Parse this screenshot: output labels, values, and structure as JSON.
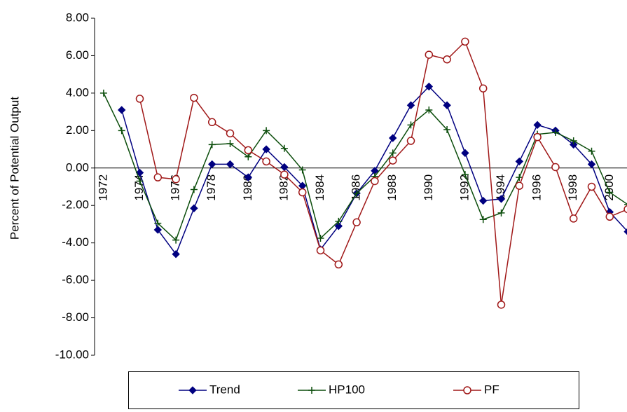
{
  "chart_data": {
    "type": "line",
    "y_label": "Percent of Potential Output",
    "categories": [
      "1972",
      null,
      "1974",
      null,
      "1976",
      null,
      "1978",
      null,
      "1980",
      null,
      "1982",
      null,
      "1984",
      null,
      "1986",
      null,
      "1988",
      null,
      "1990",
      null,
      "1992",
      null,
      "1994",
      null,
      "1996",
      null,
      "1998",
      null,
      "2000",
      null
    ],
    "series": [
      {
        "name": "Trend",
        "color": "#000080",
        "marker": "diamond",
        "values": [
          null,
          3.1,
          -0.25,
          -3.3,
          -4.6,
          -2.15,
          0.2,
          0.2,
          -0.5,
          1.0,
          0.05,
          -0.95,
          -4.35,
          -3.1,
          -1.35,
          -0.15,
          1.6,
          3.35,
          4.35,
          3.35,
          0.8,
          -1.75,
          -1.65,
          0.35,
          2.3,
          2.0,
          1.25,
          0.2,
          -2.35,
          -3.4
        ]
      },
      {
        "name": "HP100",
        "color": "#0b4d0b",
        "marker": "plus",
        "values": [
          4.0,
          2.0,
          -0.7,
          -2.95,
          -3.85,
          -1.15,
          1.25,
          1.3,
          0.6,
          2.0,
          1.05,
          -0.1,
          -3.75,
          -2.85,
          -1.35,
          -0.45,
          0.8,
          2.3,
          3.1,
          2.05,
          -0.35,
          -2.75,
          -2.4,
          -0.5,
          1.8,
          1.9,
          1.45,
          0.9,
          -1.3,
          -1.95
        ]
      },
      {
        "name": "PF",
        "color": "#a01818",
        "marker": "circle",
        "values": [
          null,
          null,
          3.7,
          -0.5,
          -0.6,
          3.75,
          2.45,
          1.85,
          0.95,
          0.35,
          -0.35,
          -1.3,
          -4.4,
          -5.15,
          -2.9,
          -0.7,
          0.4,
          1.45,
          6.05,
          5.8,
          6.75,
          4.25,
          -7.3,
          -0.95,
          1.65,
          0.05,
          -2.7,
          -1.0,
          -2.6,
          -2.2
        ]
      }
    ],
    "ylim": [
      -10,
      8
    ],
    "yticks": [
      {
        "value": -10,
        "label": "-10.00"
      },
      {
        "value": -8,
        "label": "-8.00"
      },
      {
        "value": -6,
        "label": "-6.00"
      },
      {
        "value": -4,
        "label": "-4.00"
      },
      {
        "value": -2,
        "label": "-2.00"
      },
      {
        "value": 0,
        "label": "0.00"
      },
      {
        "value": 2,
        "label": "2.00"
      },
      {
        "value": 4,
        "label": "4.00"
      },
      {
        "value": 6,
        "label": "6.00"
      },
      {
        "value": 8,
        "label": "8.00"
      }
    ],
    "grid": false,
    "legend": "bottom"
  }
}
